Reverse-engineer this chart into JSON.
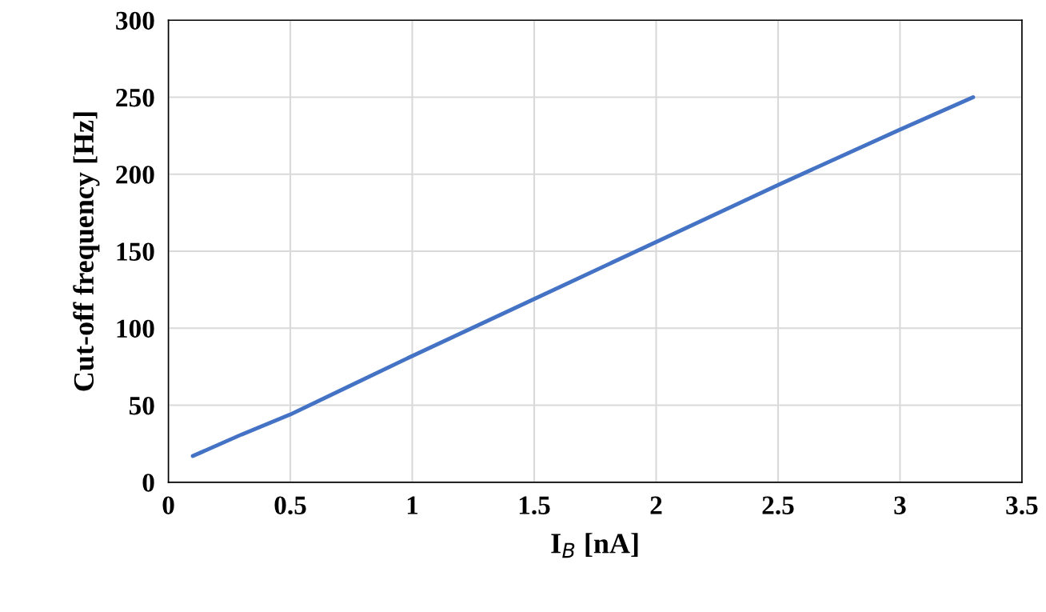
{
  "chart_data": {
    "type": "line",
    "xlabel": "I$_{B}$ [nA]",
    "ylabel": "Cut-off frequency [Hz]",
    "x": [
      0.1,
      0.3,
      0.5,
      0.75,
      1,
      1.5,
      2,
      2.5,
      3,
      3.3
    ],
    "series": [
      {
        "color": "#4472c4",
        "values": [
          17,
          31,
          44,
          63,
          82,
          119,
          156,
          193,
          229,
          250
        ]
      }
    ],
    "xlim": [
      0,
      3.5
    ],
    "xticks": [
      0,
      0.5,
      1,
      1.5,
      2,
      2.5,
      3,
      3.5
    ],
    "ylim": [
      0,
      300
    ],
    "yticks": [
      0,
      50,
      100,
      150,
      200,
      250,
      300
    ],
    "grid": true,
    "marker": "none",
    "line_style": "solid"
  }
}
